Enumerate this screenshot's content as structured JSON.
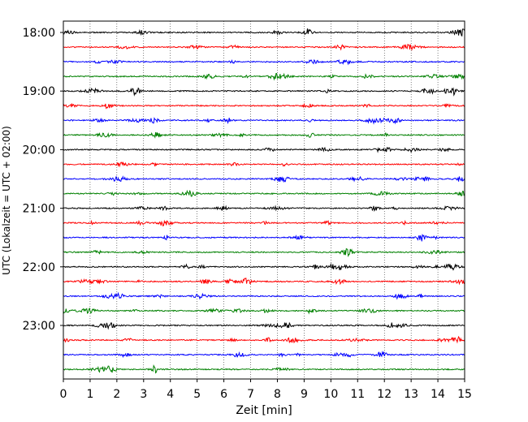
{
  "chart_data": {
    "type": "line",
    "title": "",
    "xlabel": "Zeit  [min]",
    "ylabel": "UTC (Lokalzeit = UTC + 02:00)",
    "xlim": [
      0,
      15
    ],
    "x_ticks": [
      "0",
      "1",
      "2",
      "3",
      "4",
      "5",
      "6",
      "7",
      "8",
      "9",
      "10",
      "11",
      "12",
      "13",
      "14",
      "15"
    ],
    "y_start_utc": "18:00",
    "row_interval_min": 15,
    "row_count": 24,
    "y_ticks": [
      "18:00",
      "19:00",
      "20:00",
      "21:00",
      "22:00",
      "23:00"
    ],
    "grid": "vertical dotted at each minute",
    "trace_colors": [
      "#000000",
      "#ff0000",
      "#0000ff",
      "#008000"
    ],
    "series": [
      {
        "name": "",
        "start": "18:00",
        "color": "#000000"
      },
      {
        "name": "",
        "start": "18:15",
        "color": "#ff0000"
      },
      {
        "name": "",
        "start": "18:30",
        "color": "#0000ff"
      },
      {
        "name": "",
        "start": "18:45",
        "color": "#008000"
      },
      {
        "name": "",
        "start": "19:00",
        "color": "#000000"
      },
      {
        "name": "",
        "start": "19:15",
        "color": "#ff0000"
      },
      {
        "name": "",
        "start": "19:30",
        "color": "#0000ff"
      },
      {
        "name": "",
        "start": "19:45",
        "color": "#008000"
      },
      {
        "name": "",
        "start": "20:00",
        "color": "#000000"
      },
      {
        "name": "",
        "start": "20:15",
        "color": "#ff0000"
      },
      {
        "name": "",
        "start": "20:30",
        "color": "#0000ff"
      },
      {
        "name": "",
        "start": "20:45",
        "color": "#008000"
      },
      {
        "name": "",
        "start": "21:00",
        "color": "#000000"
      },
      {
        "name": "",
        "start": "21:15",
        "color": "#ff0000"
      },
      {
        "name": "",
        "start": "21:30",
        "color": "#0000ff"
      },
      {
        "name": "",
        "start": "21:45",
        "color": "#008000"
      },
      {
        "name": "",
        "start": "22:00",
        "color": "#000000"
      },
      {
        "name": "",
        "start": "22:15",
        "color": "#ff0000"
      },
      {
        "name": "",
        "start": "22:30",
        "color": "#0000ff"
      },
      {
        "name": "",
        "start": "22:45",
        "color": "#008000"
      },
      {
        "name": "",
        "start": "23:00",
        "color": "#000000"
      },
      {
        "name": "",
        "start": "23:15",
        "color": "#ff0000"
      },
      {
        "name": "",
        "start": "23:30",
        "color": "#0000ff"
      },
      {
        "name": "",
        "start": "23:45",
        "color": "#008000"
      }
    ]
  }
}
